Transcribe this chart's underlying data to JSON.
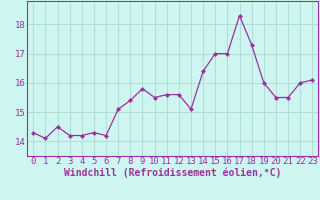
{
  "x": [
    0,
    1,
    2,
    3,
    4,
    5,
    6,
    7,
    8,
    9,
    10,
    11,
    12,
    13,
    14,
    15,
    16,
    17,
    18,
    19,
    20,
    21,
    22,
    23
  ],
  "y": [
    14.3,
    14.1,
    14.5,
    14.2,
    14.2,
    14.3,
    14.2,
    15.1,
    15.4,
    15.8,
    15.5,
    15.6,
    15.6,
    15.1,
    16.4,
    17.0,
    17.0,
    18.3,
    17.3,
    16.0,
    15.5,
    15.5,
    16.0,
    16.1
  ],
  "line_color": "#9b30a0",
  "marker_color": "#9b30a0",
  "bg_color": "#cef5ef",
  "grid_color": "#aad9d4",
  "xlabel": "Windchill (Refroidissement éolien,°C)",
  "xlabel_color": "#9b30a0",
  "tick_color": "#9b30a0",
  "ylim": [
    13.5,
    18.8
  ],
  "yticks": [
    14,
    15,
    16,
    17,
    18
  ],
  "xticks": [
    0,
    1,
    2,
    3,
    4,
    5,
    6,
    7,
    8,
    9,
    10,
    11,
    12,
    13,
    14,
    15,
    16,
    17,
    18,
    19,
    20,
    21,
    22,
    23
  ],
  "xtick_labels": [
    "0",
    "1",
    "2",
    "3",
    "4",
    "5",
    "6",
    "7",
    "8",
    "9",
    "10",
    "11",
    "12",
    "13",
    "14",
    "15",
    "16",
    "17",
    "18",
    "19",
    "20",
    "21",
    "22",
    "23"
  ],
  "font_size": 6.5,
  "xlabel_font_size": 7
}
